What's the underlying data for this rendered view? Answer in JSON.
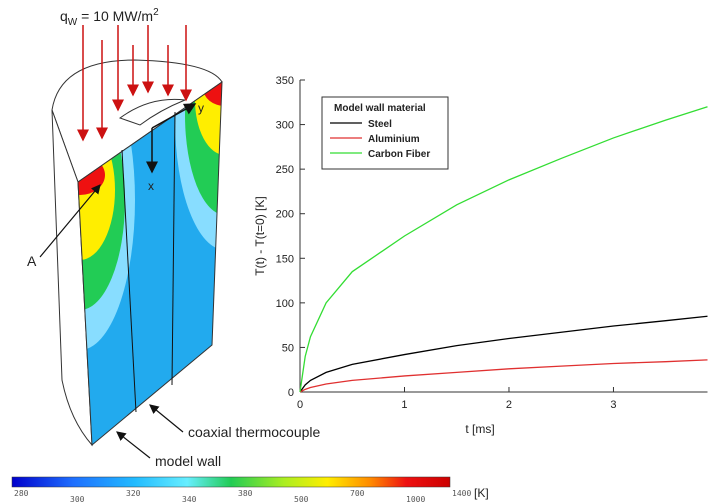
{
  "illustration": {
    "heat_flux": {
      "symbol": "q",
      "subscript": "W",
      "text": " = 10 MW/m",
      "superscript": "2"
    },
    "point_label": "A",
    "x_label": "x",
    "y_label": "y",
    "thermocouple_label": "coaxial thermocouple",
    "wall_label": "model wall"
  },
  "colorbar": {
    "labels": [
      "280",
      "300",
      "320",
      "340",
      "380",
      "500",
      "700",
      "1000",
      "1400"
    ],
    "unit": "[K]"
  },
  "chart_data": {
    "type": "line",
    "x_label": "t [ms]",
    "y_label": "T(t) - T(t=0) [K]",
    "legend_title": "Model wall material",
    "legend_position": "upper left",
    "x": [
      0,
      0.05,
      0.1,
      0.25,
      0.5,
      1,
      1.5,
      2,
      2.5,
      3,
      3.5,
      3.9
    ],
    "series": [
      {
        "name": "Steel",
        "color": "#000000",
        "values": [
          0,
          8,
          13,
          22,
          31,
          42,
          52,
          60,
          67,
          74,
          80,
          85
        ]
      },
      {
        "name": "Aluminium",
        "color": "#e03030",
        "values": [
          0,
          3,
          5,
          9,
          13,
          18,
          22,
          26,
          29,
          32,
          34,
          36
        ]
      },
      {
        "name": "Carbon Fiber",
        "color": "#33dd33",
        "values": [
          0,
          40,
          62,
          100,
          135,
          175,
          210,
          238,
          262,
          285,
          305,
          320
        ]
      }
    ],
    "xlim": [
      0,
      3.9
    ],
    "ylim": [
      0,
      350
    ],
    "xticks": [
      0,
      1,
      2,
      3
    ],
    "yticks": [
      0,
      50,
      100,
      150,
      200,
      250,
      300,
      350
    ],
    "grid": false
  }
}
